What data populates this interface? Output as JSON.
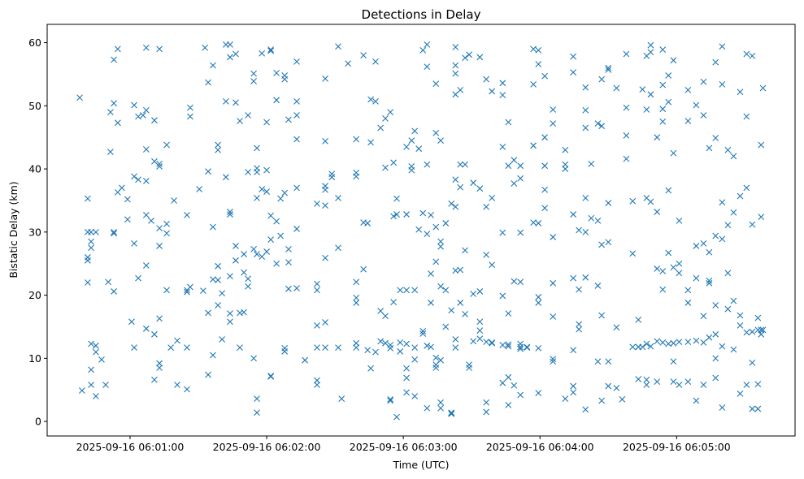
{
  "chart_data": {
    "type": "scatter",
    "title": "Detections in Delay",
    "xlabel": "Time (UTC)",
    "ylabel": "Bistatic Delay (km)",
    "x_units": "seconds after 2025-09-16 06:00:00 UTC",
    "xlim": [
      23.6,
      352
    ],
    "ylim": [
      -2.3,
      62.9
    ],
    "x_ticks": [
      60,
      120,
      180,
      240,
      300
    ],
    "x_tick_labels": [
      "2025-09-16 06:01:00",
      "2025-09-16 06:02:00",
      "2025-09-16 06:03:00",
      "2025-09-16 06:04:00",
      "2025-09-16 06:05:00"
    ],
    "y_ticks": [
      0,
      10,
      20,
      30,
      40,
      50,
      60
    ],
    "y_tick_labels": [
      "0",
      "10",
      "20",
      "30",
      "40",
      "50",
      "60"
    ],
    "grid": false,
    "marker": "x",
    "color": "#1f77b4",
    "points_grouped_by_time": [
      [
        37.9,
        [
          51.3
        ]
      ],
      [
        38.9,
        [
          4.9
        ]
      ],
      [
        41.4,
        [
          30,
          25.5,
          26,
          35.3,
          22
        ]
      ],
      [
        42.9,
        [
          5.8,
          8.2,
          12.3,
          27.5,
          28.5,
          30
        ]
      ],
      [
        45,
        [
          12,
          11,
          4,
          30
        ]
      ],
      [
        47.5,
        [
          9.8
        ]
      ],
      [
        49.3,
        [
          5.8
        ]
      ],
      [
        50.4,
        [
          22.1
        ]
      ],
      [
        51.4,
        [
          49,
          42.7
        ]
      ],
      [
        52.9,
        [
          57.3,
          50.4,
          30,
          29.8,
          20.6
        ]
      ],
      [
        54.6,
        [
          47.3,
          36.3,
          59
        ]
      ],
      [
        56.4,
        [
          37
        ]
      ],
      [
        58.9,
        [
          35.2,
          32
        ]
      ],
      [
        60.7,
        [
          15.8
        ]
      ],
      [
        61.8,
        [
          38.8,
          50.1,
          11.7,
          28.2
        ]
      ],
      [
        63.6,
        [
          48.3,
          38.3,
          22.7
        ]
      ],
      [
        65.7,
        [
          48.5
        ]
      ],
      [
        67.1,
        [
          59.2,
          43.1,
          49.3,
          32.7,
          24.7,
          38.1,
          14.7
        ]
      ],
      [
        69.3,
        [
          31.8
        ]
      ],
      [
        70.7,
        [
          47.7,
          41.2,
          13.8,
          6.6
        ]
      ],
      [
        72.9,
        [
          59,
          40.8,
          30.6,
          16.3,
          8.5,
          9.2,
          27.8,
          40.4
        ]
      ],
      [
        76.1,
        [
          43.8,
          20.8,
          29.8,
          31.3
        ]
      ],
      [
        77.9,
        [
          11.7
        ]
      ],
      [
        79.3,
        [
          35
        ]
      ],
      [
        80.7,
        [
          12.8,
          5.8
        ]
      ],
      [
        85,
        [
          20.8,
          20.5,
          32.7,
          5.1,
          11.7
        ]
      ],
      [
        86.4,
        [
          49.7,
          48.3,
          21.3
        ]
      ],
      [
        90.4,
        [
          36.8
        ]
      ],
      [
        92.1,
        [
          20.7
        ]
      ],
      [
        92.9,
        [
          59.2
        ]
      ],
      [
        94.3,
        [
          53.7,
          39.6,
          17.2,
          7.4
        ]
      ],
      [
        96.4,
        [
          56.4,
          10.5,
          22.5,
          30.8
        ]
      ],
      [
        98.6,
        [
          18.4,
          22.4,
          24.6,
          43.8,
          43
        ]
      ],
      [
        100.4,
        [
          20.3,
          13
        ]
      ],
      [
        102.1,
        [
          59.7,
          50.7,
          38.7
        ]
      ],
      [
        103.9,
        [
          57.7,
          59.7,
          32.8,
          23,
          17.1,
          33.2,
          15.8
        ]
      ],
      [
        106.4,
        [
          58.2,
          50.5,
          27.8,
          25.5
        ]
      ],
      [
        108.2,
        [
          47.6,
          11.7,
          17.2
        ]
      ],
      [
        110,
        [
          17.3,
          23.6,
          26.5
        ]
      ],
      [
        111.8,
        [
          48.5,
          39.5,
          21.4,
          22.6
        ]
      ],
      [
        114.3,
        [
          55.1,
          53.9,
          27.3,
          10
        ]
      ],
      [
        115.7,
        [
          43.3,
          35.4,
          26.5,
          3.6,
          1.4,
          40.1,
          39.5
        ]
      ],
      [
        117.9,
        [
          58.3,
          36.8,
          26.1
        ]
      ],
      [
        120,
        [
          47.4,
          39.8,
          36.4,
          26.9
        ]
      ],
      [
        121.8,
        [
          58.7,
          58.9,
          32.6,
          28.8,
          7.2,
          7.1
        ]
      ],
      [
        124.3,
        [
          55.2,
          50.9,
          31.7,
          25
        ]
      ],
      [
        126.1,
        [
          35.3,
          29.4
        ]
      ],
      [
        127.9,
        [
          54.8,
          54.2,
          36.2,
          11.6,
          11.1
        ]
      ],
      [
        129.6,
        [
          47.8,
          27.3,
          25.2,
          21
        ]
      ],
      [
        133.2,
        [
          50.7,
          57,
          48.5,
          44.7,
          37,
          30.5,
          21.1
        ]
      ],
      [
        136.8,
        [
          9.7
        ]
      ],
      [
        142.1,
        [
          34.5,
          21.8,
          20.8,
          6.5,
          5.8,
          15.2,
          11.7
        ]
      ],
      [
        145.7,
        [
          54.3,
          44.4,
          37.3,
          36.7,
          34.2,
          15.7,
          11.7,
          25.9
        ]
      ],
      [
        148.6,
        [
          38.7,
          39.2
        ]
      ],
      [
        151.4,
        [
          59.4,
          27.5,
          35.4,
          11.7
        ]
      ],
      [
        152.9,
        [
          3.6
        ]
      ],
      [
        155.7,
        [
          56.7
        ]
      ],
      [
        159.3,
        [
          44.7,
          38.8,
          39.4,
          22.1,
          19.6,
          18.8,
          12.4,
          11.7
        ]
      ],
      [
        162.5,
        [
          58,
          31.5,
          24.1
        ]
      ],
      [
        164.3,
        [
          31.4,
          11.3
        ]
      ],
      [
        165.7,
        [
          51,
          44.2,
          8.4
        ]
      ],
      [
        167.8,
        [
          57,
          50.7,
          11
        ]
      ],
      [
        170,
        [
          46.5,
          17.5,
          12.7
        ]
      ],
      [
        172.1,
        [
          48,
          40.2,
          16.7,
          12.4
        ]
      ],
      [
        174.3,
        [
          49,
          3.3,
          3.5,
          12.1,
          11.6
        ]
      ],
      [
        175.7,
        [
          32.5,
          41,
          18.9
        ]
      ],
      [
        177.1,
        [
          32.8,
          35.3,
          0.7
        ]
      ],
      [
        178.6,
        [
          11.1,
          20.8,
          12.5
        ]
      ],
      [
        181.4,
        [
          43.5,
          8.4,
          6.9,
          4.6,
          12.3,
          20.8,
          32.8
        ]
      ],
      [
        183.6,
        [
          40.4,
          44.5,
          39.8
        ]
      ],
      [
        185,
        [
          11.7,
          46,
          4,
          9.8,
          20.8
        ]
      ],
      [
        186.8,
        [
          43.2,
          30.4
        ]
      ],
      [
        188.6,
        [
          58.8,
          33,
          14.3,
          13.9
        ]
      ],
      [
        190.4,
        [
          40.7,
          59.7,
          56.2,
          29.7,
          12,
          2.1
        ]
      ],
      [
        192.1,
        [
          18.8,
          11.8,
          32.7,
          23.4
        ]
      ],
      [
        194.3,
        [
          10.1,
          8.5,
          9,
          25.3,
          30.8,
          53.5,
          45.7
        ]
      ],
      [
        196.4,
        [
          44.5,
          28.5,
          27.7,
          21.4,
          9.7,
          3,
          2.1
        ]
      ],
      [
        198.6,
        [
          31.4,
          20.8,
          15
        ]
      ],
      [
        201.1,
        [
          34.5,
          17.6,
          1.2,
          1.4,
          1.3
        ]
      ],
      [
        202.9,
        [
          59.3,
          55.1,
          56.4,
          51.8,
          38.3,
          34,
          23.9,
          13,
          11.7
        ]
      ],
      [
        205,
        [
          40.7,
          52.5,
          24,
          37.1,
          18.8
        ]
      ],
      [
        207.1,
        [
          40.7,
          57.6,
          27.1,
          17
        ]
      ],
      [
        208.9,
        [
          58.1,
          9,
          8.5
        ]
      ],
      [
        210.7,
        [
          37.8,
          20.2,
          12.7
        ]
      ],
      [
        213.6,
        [
          57.7,
          36.9,
          20.6,
          13.1,
          15.8,
          14.4
        ]
      ],
      [
        216.4,
        [
          54.2,
          34,
          26.4,
          12.6,
          3,
          1.5
        ]
      ],
      [
        218.9,
        [
          52.3,
          35.4,
          24.8,
          12.5,
          12.4
        ]
      ],
      [
        223.6,
        [
          53.6,
          51.7,
          43.5,
          29.9,
          12.1,
          6.1,
          19.9
        ]
      ],
      [
        226.1,
        [
          47.4,
          40.5,
          17.1,
          12.2,
          11.9,
          2.6,
          7
        ]
      ],
      [
        228.6,
        [
          41.4,
          22.2,
          37.7,
          5.7
        ]
      ],
      [
        231.4,
        [
          38.5,
          40.5,
          29.9,
          12.3,
          22.1,
          11.8,
          11.5,
          4.2
        ]
      ],
      [
        234.3,
        [
          11.7,
          11.8
        ]
      ],
      [
        237.1,
        [
          59,
          53.4,
          43.7,
          31.5
        ]
      ],
      [
        239.3,
        [
          58.8,
          56.6,
          31.4,
          19.7,
          18.8,
          4.5,
          11.6
        ]
      ],
      [
        242.1,
        [
          54.7,
          45,
          36.7,
          33.8,
          40.5
        ]
      ],
      [
        245.7,
        [
          49.4,
          47.2,
          29.2,
          16.6,
          21.9,
          9.9,
          9.5
        ]
      ],
      [
        251.1,
        [
          40,
          40.7,
          43,
          3.6
        ]
      ],
      [
        254.6,
        [
          57.8,
          55.3,
          32.8,
          22.7,
          11.3,
          4.6,
          5.6
        ]
      ],
      [
        257.1,
        [
          15.4,
          20.9,
          14.6,
          30.3
        ]
      ],
      [
        260,
        [
          52.9,
          46.5,
          49.3,
          35.4,
          30,
          22.8,
          1.9
        ]
      ],
      [
        262.5,
        [
          40.8,
          32.2
        ]
      ],
      [
        265.4,
        [
          47.2,
          31.8,
          21.5,
          9.5
        ]
      ],
      [
        267.1,
        [
          54.2,
          46.8,
          28,
          16.8,
          3.3
        ]
      ],
      [
        270,
        [
          55.7,
          56,
          34.6,
          28.4,
          9.5,
          5.6
        ]
      ],
      [
        273.6,
        [
          52.8,
          14.9,
          5.3
        ]
      ],
      [
        276.1,
        [
          3.5
        ]
      ],
      [
        277.9,
        [
          49.7,
          45.3,
          41.6,
          58.2
        ]
      ],
      [
        280.7,
        [
          34.9,
          26.6,
          11.8
        ]
      ],
      [
        283.2,
        [
          11.8,
          11.8,
          16.1,
          6.7
        ]
      ],
      [
        285,
        [
          11.8,
          52.6
        ]
      ],
      [
        286.8,
        [
          57.9,
          49.4,
          35.4,
          12.3,
          5.8,
          6.6
        ]
      ],
      [
        288.6,
        [
          58.5,
          59.6,
          51.8,
          34.8,
          11.9
        ]
      ],
      [
        291.4,
        [
          45,
          33.2,
          24.2,
          12.7,
          6.3
        ]
      ],
      [
        293.9,
        [
          58.9,
          53.3,
          49.5,
          47.5,
          23.8,
          20.9,
          12.5
        ]
      ],
      [
        296.4,
        [
          54.8,
          50.6,
          36.6,
          26.7,
          12.3
        ]
      ],
      [
        298.6,
        [
          57.2,
          42.5,
          24.4,
          12.4,
          9.5,
          6.3
        ]
      ],
      [
        301.1,
        [
          31.8,
          25,
          23.5,
          12.6,
          5.8
        ]
      ],
      [
        305,
        [
          52.5,
          47.6,
          20.8,
          18.8,
          12.6,
          6.3
        ]
      ],
      [
        308.6,
        [
          50.1,
          27.8,
          22.7,
          12.8,
          3.3
        ]
      ],
      [
        311.8,
        [
          53.8,
          48.5,
          28.2,
          16.7,
          12.5,
          5.8
        ]
      ],
      [
        314.3,
        [
          43.3,
          26.8,
          22.3,
          21.9,
          13.3
        ]
      ],
      [
        317.1,
        [
          56.9,
          44.9,
          29.4,
          18.4,
          13.8,
          10,
          6.9
        ]
      ],
      [
        320,
        [
          53.4,
          59.4,
          34.7,
          28.9,
          11.9,
          2.2
        ]
      ],
      [
        322.5,
        [
          31.1,
          23.5,
          43,
          17.8
        ]
      ],
      [
        325,
        [
          42,
          33.1,
          19.1,
          11.4
        ]
      ],
      [
        327.9,
        [
          52.2,
          35.7,
          16.8,
          15.2,
          4.4
        ]
      ],
      [
        330.7,
        [
          58.2,
          48.3,
          37,
          14.1,
          5.8
        ]
      ],
      [
        333.2,
        [
          57.9,
          31.2,
          14.2,
          9.3,
          2
        ]
      ],
      [
        335.7,
        [
          16.4,
          14.5,
          5.9,
          2
        ]
      ],
      [
        337.1,
        [
          43.8,
          32.4,
          14.5,
          13.8
        ]
      ],
      [
        337.9,
        [
          52.8,
          14.5
        ]
      ]
    ]
  }
}
